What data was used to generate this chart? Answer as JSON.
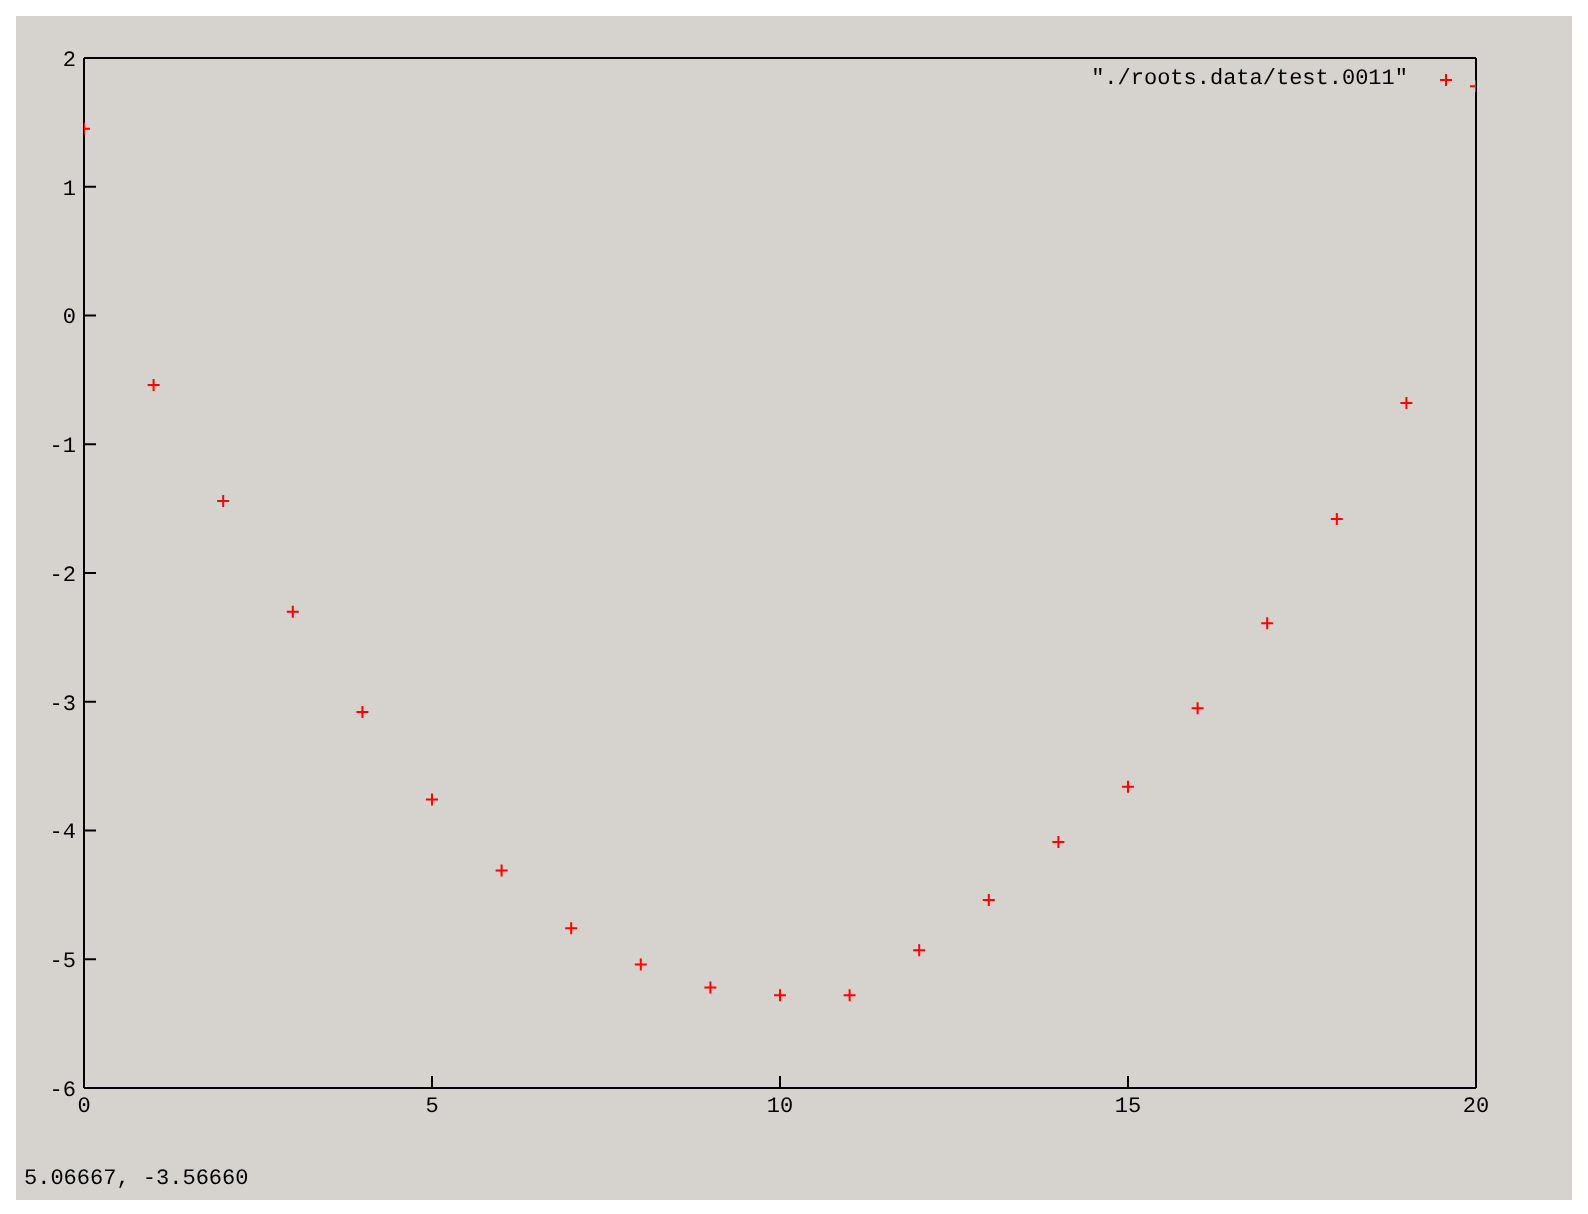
{
  "chart_data": {
    "type": "scatter",
    "x": [
      0,
      1,
      2,
      3,
      4,
      5,
      6,
      7,
      8,
      9,
      10,
      11,
      12,
      13,
      14,
      15,
      16,
      17,
      18,
      19,
      20
    ],
    "series": [
      {
        "name": "\"./roots.data/test.0011\"",
        "color": "#ff0000",
        "values": [
          1.45,
          -0.54,
          -1.44,
          -2.3,
          -3.08,
          -3.76,
          -4.31,
          -4.76,
          -5.04,
          -5.22,
          -5.28,
          -5.28,
          -4.93,
          -4.54,
          -4.09,
          -3.66,
          -3.05,
          -2.39,
          -1.58,
          -0.68,
          1.78
        ]
      }
    ],
    "xlim": [
      0,
      20
    ],
    "xticks": [
      0,
      5,
      10,
      15,
      20
    ],
    "ylim": [
      -6,
      2
    ],
    "yticks": [
      -6,
      -5,
      -4,
      -3,
      -2,
      -1,
      0,
      1,
      2
    ],
    "marker": "cross",
    "legend": "top right",
    "annotations": [
      "5.06667, -3.56660"
    ]
  }
}
